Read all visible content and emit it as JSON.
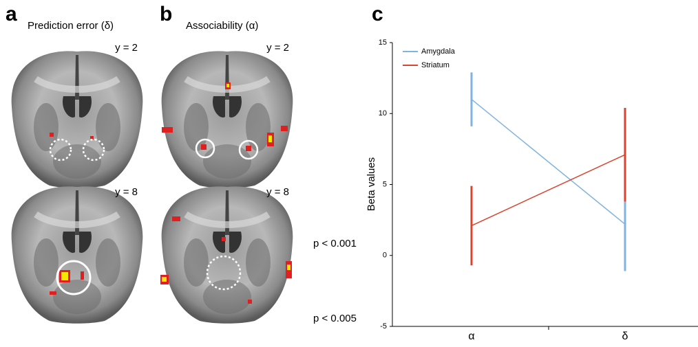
{
  "panels": {
    "a": {
      "letter": "a",
      "title": "Prediction error (δ)",
      "top_label": "y = 2",
      "bottom_label": "y = 8"
    },
    "b": {
      "letter": "b",
      "title": "Associability (α)",
      "top_label": "y = 2",
      "bottom_label": "y = 8"
    },
    "thresholds": [
      "p < 0.001",
      "p < 0.005"
    ]
  },
  "chart_data": {
    "type": "line",
    "letter": "c",
    "ylabel": "Beta values",
    "categories": [
      "α",
      "δ"
    ],
    "series": [
      {
        "name": "Amygdala",
        "color": "#7fb3e0",
        "values": [
          11,
          2.2
        ],
        "errors": [
          1.9,
          3.3
        ]
      },
      {
        "name": "Striatum",
        "color": "#d9442f",
        "values": [
          2.1,
          7.1
        ],
        "errors": [
          2.8,
          3.3
        ]
      }
    ],
    "ylim": [
      -5,
      15
    ],
    "yticks": [
      -5,
      0,
      5,
      10,
      15
    ],
    "legend": "upper left"
  }
}
